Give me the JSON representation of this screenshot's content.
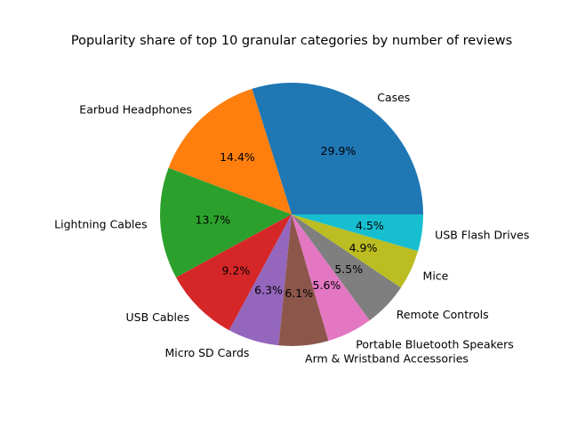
{
  "chart_data": {
    "type": "pie",
    "title": "Popularity share of top 10 granular categories by number of reviews",
    "start_angle_deg": 0,
    "direction": "counterclockwise",
    "categories": [
      "Cases",
      "Earbud Headphones",
      "Lightning Cables",
      "USB Cables",
      "Micro SD Cards",
      "Arm & Wristband Accessories",
      "Portable Bluetooth Speakers",
      "Remote Controls",
      "Mice",
      "USB Flash Drives"
    ],
    "values": [
      29.9,
      14.4,
      13.7,
      9.2,
      6.3,
      6.1,
      5.6,
      5.5,
      4.9,
      4.5
    ],
    "pct_labels": [
      "29.9%",
      "14.4%",
      "13.7%",
      "9.2%",
      "6.3%",
      "6.1%",
      "5.6%",
      "5.5%",
      "4.9%",
      "4.5%"
    ],
    "colors": [
      "#1f77b4",
      "#ff7f0e",
      "#2ca02c",
      "#d62728",
      "#9467bd",
      "#8c564b",
      "#e377c2",
      "#7f7f7f",
      "#bcbd22",
      "#17becf"
    ]
  }
}
